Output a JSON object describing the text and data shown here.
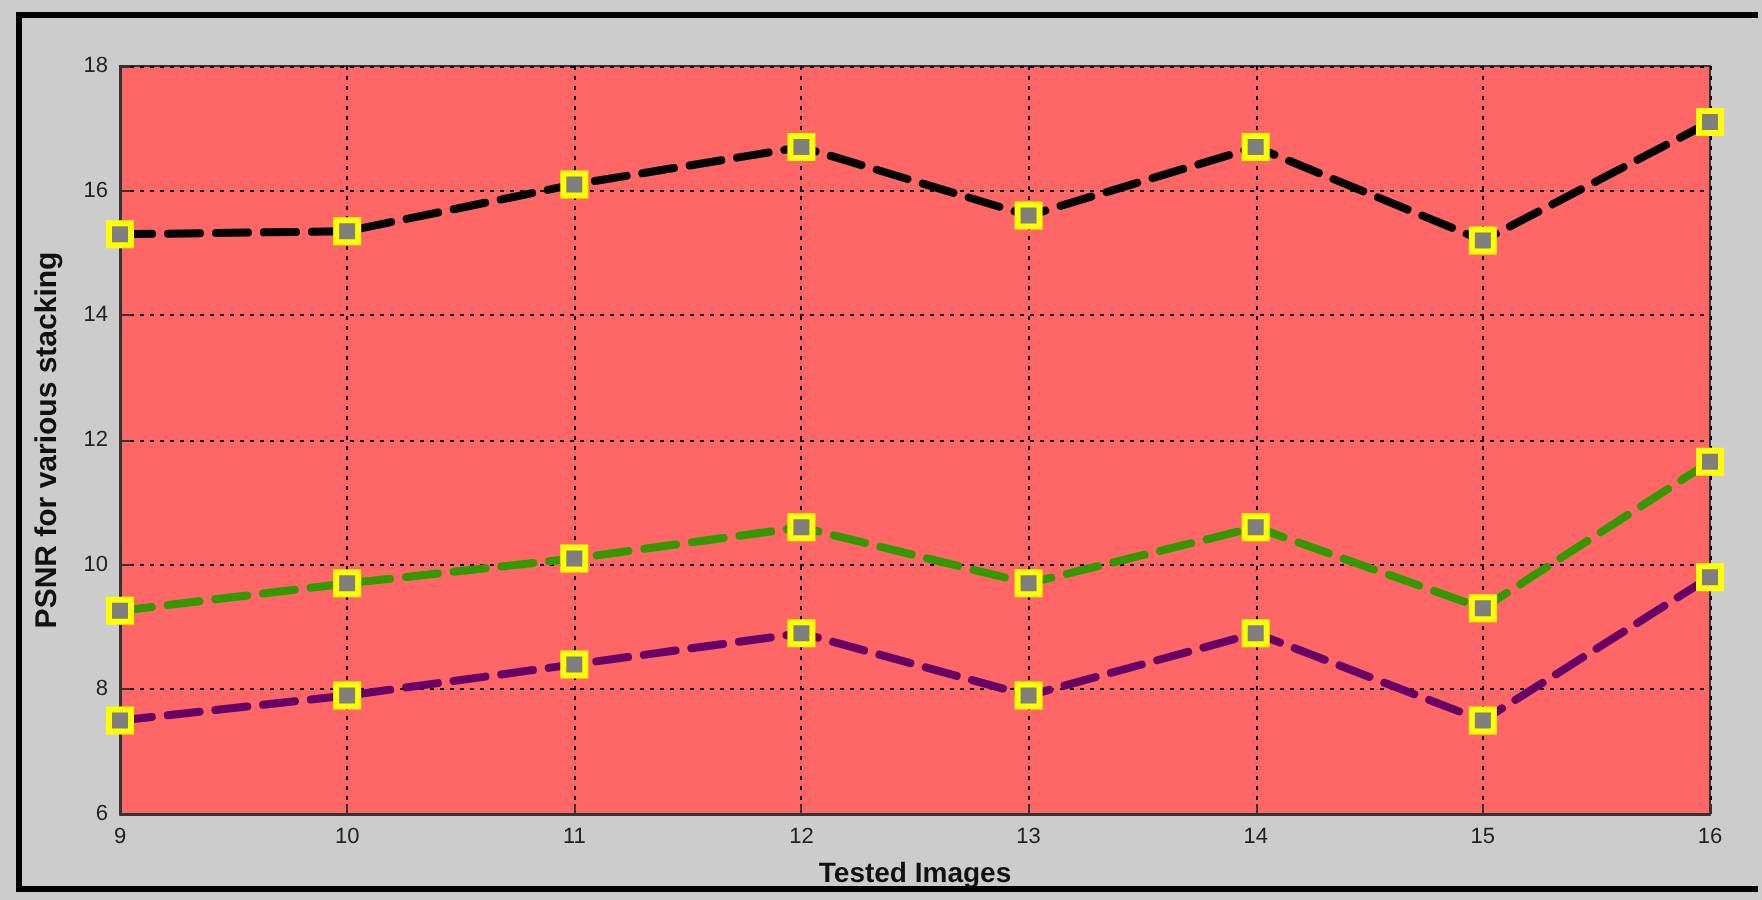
{
  "chart_data": {
    "type": "line",
    "xlabel": "Tested Images",
    "ylabel": "PSNR for various stacking",
    "x": [
      9,
      10,
      11,
      12,
      13,
      14,
      15,
      16
    ],
    "series": [
      {
        "color": "#000000",
        "values": [
          15.3,
          15.35,
          16.1,
          16.7,
          15.6,
          16.7,
          15.2,
          17.1
        ]
      },
      {
        "color": "#339900",
        "values": [
          9.26,
          9.7,
          10.1,
          10.6,
          9.7,
          10.6,
          9.3,
          11.65
        ]
      },
      {
        "color": "#660066",
        "values": [
          7.5,
          7.9,
          8.4,
          8.9,
          7.9,
          8.9,
          7.5,
          9.8
        ]
      }
    ],
    "xlim": [
      9,
      16
    ],
    "xticks": [
      9,
      10,
      11,
      12,
      13,
      14,
      15,
      16
    ],
    "ylim": [
      6,
      18
    ],
    "yticks": [
      6,
      8,
      10,
      12,
      14,
      16,
      18
    ],
    "grid": true,
    "marker": "square",
    "line_style": "dashed"
  }
}
